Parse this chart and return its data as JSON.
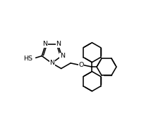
{
  "bg": "#ffffff",
  "lc": "#000000",
  "lw": 1.15,
  "fs": 6.8,
  "dpi": 100,
  "figw": 2.31,
  "figh": 1.85,
  "xlim": [
    -1.0,
    9.5
  ],
  "ylim": [
    -0.5,
    8.5
  ]
}
